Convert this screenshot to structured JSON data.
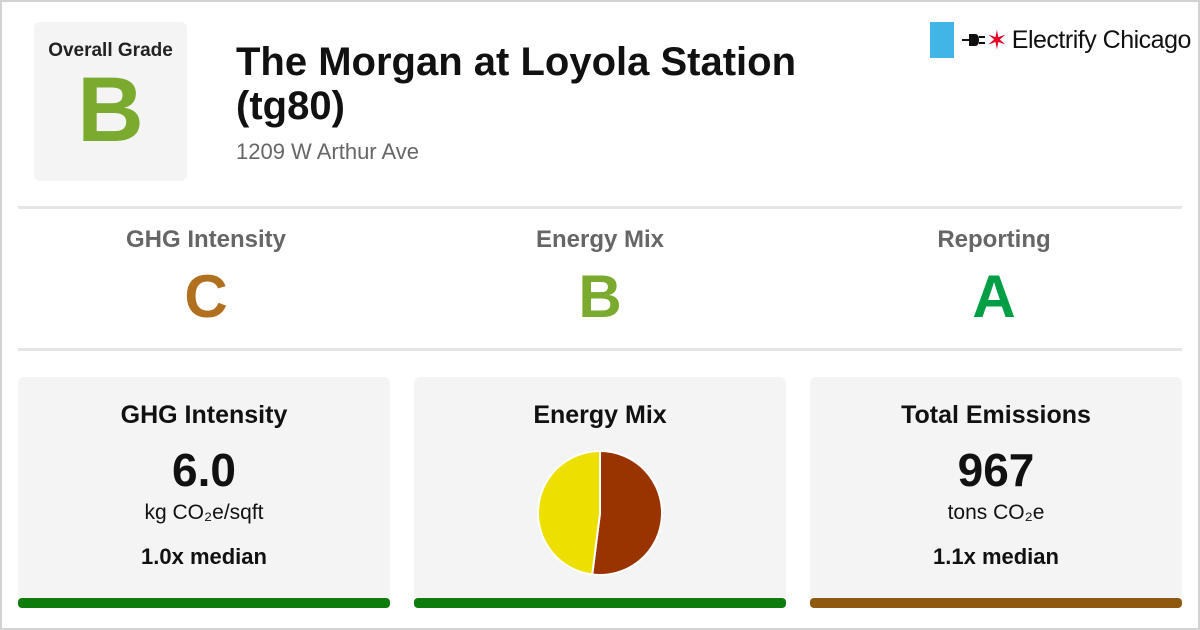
{
  "overall": {
    "label": "Overall Grade",
    "grade": "B",
    "color": "#7aaa2e"
  },
  "building": {
    "name": "The Morgan at Loyola Station (tg80)",
    "address": "1209 W Arthur Ave"
  },
  "brand": {
    "name": "Electrify Chicago",
    "flag_color": "#41b6e6",
    "star": "✶",
    "star_color": "#e4002b"
  },
  "subgrades": [
    {
      "label": "GHG Intensity",
      "grade": "C",
      "color": "#b0701f"
    },
    {
      "label": "Energy Mix",
      "grade": "B",
      "color": "#7aaa2e"
    },
    {
      "label": "Reporting",
      "grade": "A",
      "color": "#009e45"
    }
  ],
  "cards": {
    "ghg": {
      "title": "GHG Intensity",
      "value": "6.0",
      "unit": "kg CO₂e/sqft",
      "median": "1.0x median",
      "bar_color": "#0d7c0d"
    },
    "mix": {
      "title": "Energy Mix",
      "bar_color": "#0d7c0d"
    },
    "total": {
      "title": "Total Emissions",
      "value": "967",
      "unit": "tons CO₂e",
      "median": "1.1x median",
      "bar_color": "#8f5a10"
    }
  },
  "chart_data": {
    "type": "pie",
    "slices": [
      {
        "value": 52,
        "color": "#993300"
      },
      {
        "value": 48,
        "color": "#ede000"
      }
    ]
  }
}
